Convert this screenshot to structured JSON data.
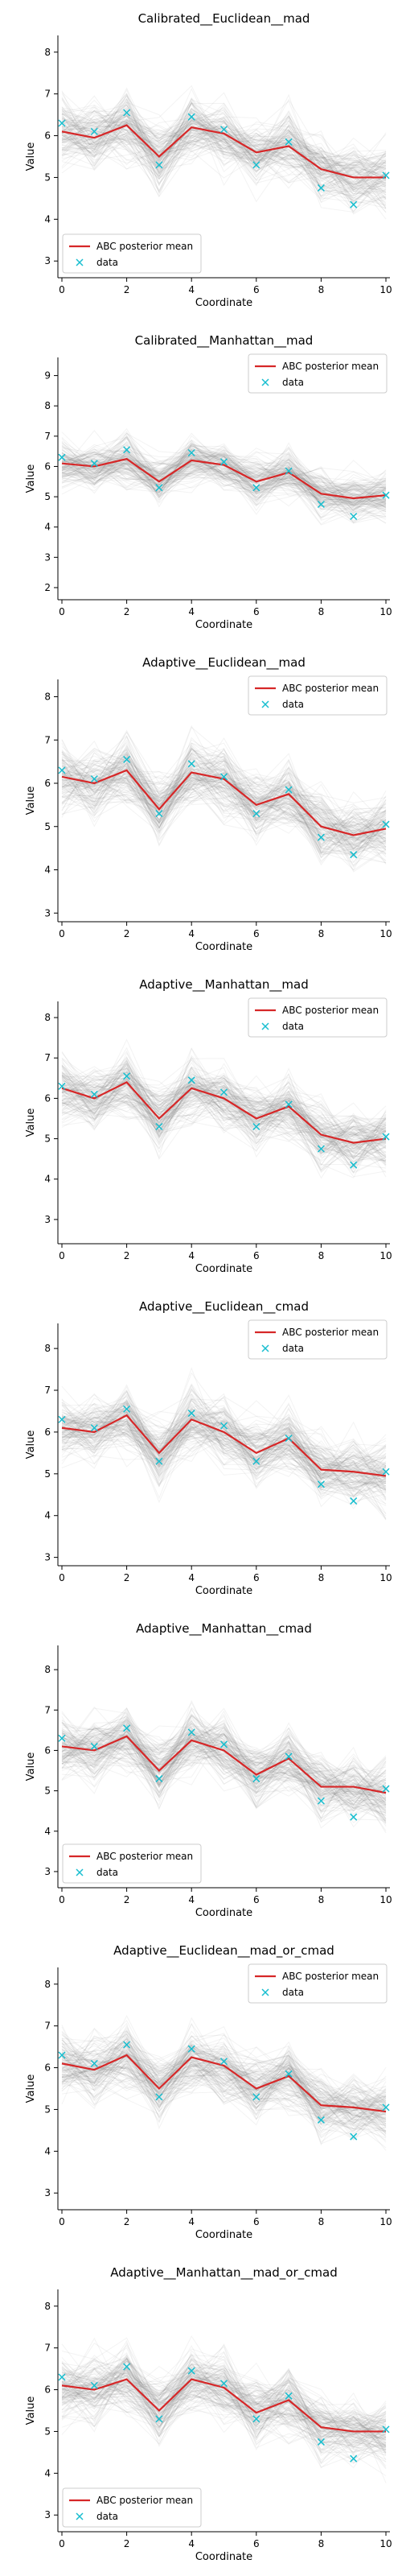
{
  "chart_data": [
    {
      "type": "line",
      "title": "Calibrated__Euclidean__mad",
      "xlabel": "Coordinate",
      "ylabel": "Value",
      "xlim": [
        0,
        10
      ],
      "ylim": [
        2.6,
        8.4
      ],
      "x_ticks": [
        "0",
        "2",
        "4",
        "6",
        "8",
        "10"
      ],
      "y_ticks": [
        "3",
        "4",
        "5",
        "6",
        "7",
        "8"
      ],
      "legend_position": "bottom-left",
      "series": [
        {
          "name": "ABC posterior mean",
          "x": [
            0,
            1,
            2,
            3,
            4,
            5,
            6,
            7,
            8,
            9,
            10
          ],
          "y": [
            6.1,
            5.95,
            6.25,
            5.5,
            6.2,
            6.05,
            5.6,
            5.75,
            5.2,
            5.0,
            5.0
          ],
          "color": "#d62728"
        },
        {
          "name": "data",
          "x": [
            0,
            1,
            2,
            3,
            4,
            5,
            6,
            7,
            8,
            9,
            10
          ],
          "y": [
            6.3,
            6.1,
            6.55,
            5.3,
            6.45,
            6.15,
            5.3,
            5.85,
            4.75,
            4.35,
            5.05
          ],
          "color": "#17becf"
        }
      ]
    },
    {
      "type": "line",
      "title": "Calibrated__Manhattan__mad",
      "xlabel": "Coordinate",
      "ylabel": "Value",
      "xlim": [
        0,
        10
      ],
      "ylim": [
        1.6,
        9.6
      ],
      "x_ticks": [
        "0",
        "2",
        "4",
        "6",
        "8",
        "10"
      ],
      "y_ticks": [
        "2",
        "3",
        "4",
        "5",
        "6",
        "7",
        "8",
        "9"
      ],
      "legend_position": "top-right",
      "series": [
        {
          "name": "ABC posterior mean",
          "x": [
            0,
            1,
            2,
            3,
            4,
            5,
            6,
            7,
            8,
            9,
            10
          ],
          "y": [
            6.1,
            6.0,
            6.25,
            5.5,
            6.2,
            6.05,
            5.5,
            5.8,
            5.1,
            4.95,
            5.05
          ],
          "color": "#d62728"
        },
        {
          "name": "data",
          "x": [
            0,
            1,
            2,
            3,
            4,
            5,
            6,
            7,
            8,
            9,
            10
          ],
          "y": [
            6.3,
            6.1,
            6.55,
            5.3,
            6.45,
            6.15,
            5.3,
            5.85,
            4.75,
            4.35,
            5.05
          ],
          "color": "#17becf"
        }
      ]
    },
    {
      "type": "line",
      "title": "Adaptive__Euclidean__mad",
      "xlabel": "Coordinate",
      "ylabel": "Value",
      "xlim": [
        0,
        10
      ],
      "ylim": [
        2.8,
        8.4
      ],
      "x_ticks": [
        "0",
        "2",
        "4",
        "6",
        "8",
        "10"
      ],
      "y_ticks": [
        "3",
        "4",
        "5",
        "6",
        "7",
        "8"
      ],
      "legend_position": "top-right",
      "series": [
        {
          "name": "ABC posterior mean",
          "x": [
            0,
            1,
            2,
            3,
            4,
            5,
            6,
            7,
            8,
            9,
            10
          ],
          "y": [
            6.15,
            6.0,
            6.3,
            5.4,
            6.25,
            6.1,
            5.5,
            5.75,
            5.0,
            4.8,
            4.95
          ],
          "color": "#d62728"
        },
        {
          "name": "data",
          "x": [
            0,
            1,
            2,
            3,
            4,
            5,
            6,
            7,
            8,
            9,
            10
          ],
          "y": [
            6.3,
            6.1,
            6.55,
            5.3,
            6.45,
            6.15,
            5.3,
            5.85,
            4.75,
            4.35,
            5.05
          ],
          "color": "#17becf"
        }
      ]
    },
    {
      "type": "line",
      "title": "Adaptive__Manhattan__mad",
      "xlabel": "Coordinate",
      "ylabel": "Value",
      "xlim": [
        0,
        10
      ],
      "ylim": [
        2.4,
        8.4
      ],
      "x_ticks": [
        "0",
        "2",
        "4",
        "6",
        "8",
        "10"
      ],
      "y_ticks": [
        "3",
        "4",
        "5",
        "6",
        "7",
        "8"
      ],
      "legend_position": "top-right",
      "series": [
        {
          "name": "ABC posterior mean",
          "x": [
            0,
            1,
            2,
            3,
            4,
            5,
            6,
            7,
            8,
            9,
            10
          ],
          "y": [
            6.25,
            6.0,
            6.4,
            5.5,
            6.25,
            6.0,
            5.5,
            5.8,
            5.1,
            4.9,
            5.0
          ],
          "color": "#d62728"
        },
        {
          "name": "data",
          "x": [
            0,
            1,
            2,
            3,
            4,
            5,
            6,
            7,
            8,
            9,
            10
          ],
          "y": [
            6.3,
            6.1,
            6.55,
            5.3,
            6.45,
            6.15,
            5.3,
            5.85,
            4.75,
            4.35,
            5.05
          ],
          "color": "#17becf"
        }
      ]
    },
    {
      "type": "line",
      "title": "Adaptive__Euclidean__cmad",
      "xlabel": "Coordinate",
      "ylabel": "Value",
      "xlim": [
        0,
        10
      ],
      "ylim": [
        2.8,
        8.6
      ],
      "x_ticks": [
        "0",
        "2",
        "4",
        "6",
        "8",
        "10"
      ],
      "y_ticks": [
        "3",
        "4",
        "5",
        "6",
        "7",
        "8"
      ],
      "legend_position": "top-right",
      "series": [
        {
          "name": "ABC posterior mean",
          "x": [
            0,
            1,
            2,
            3,
            4,
            5,
            6,
            7,
            8,
            9,
            10
          ],
          "y": [
            6.1,
            6.0,
            6.4,
            5.5,
            6.3,
            6.0,
            5.5,
            5.85,
            5.1,
            5.05,
            4.95
          ],
          "color": "#d62728"
        },
        {
          "name": "data",
          "x": [
            0,
            1,
            2,
            3,
            4,
            5,
            6,
            7,
            8,
            9,
            10
          ],
          "y": [
            6.3,
            6.1,
            6.55,
            5.3,
            6.45,
            6.15,
            5.3,
            5.85,
            4.75,
            4.35,
            5.05
          ],
          "color": "#17becf"
        }
      ]
    },
    {
      "type": "line",
      "title": "Adaptive__Manhattan__cmad",
      "xlabel": "Coordinate",
      "ylabel": "Value",
      "xlim": [
        0,
        10
      ],
      "ylim": [
        2.6,
        8.6
      ],
      "x_ticks": [
        "0",
        "2",
        "4",
        "6",
        "8",
        "10"
      ],
      "y_ticks": [
        "3",
        "4",
        "5",
        "6",
        "7",
        "8"
      ],
      "legend_position": "bottom-left",
      "series": [
        {
          "name": "ABC posterior mean",
          "x": [
            0,
            1,
            2,
            3,
            4,
            5,
            6,
            7,
            8,
            9,
            10
          ],
          "y": [
            6.1,
            6.0,
            6.35,
            5.5,
            6.25,
            6.0,
            5.4,
            5.8,
            5.1,
            5.1,
            4.95
          ],
          "color": "#d62728"
        },
        {
          "name": "data",
          "x": [
            0,
            1,
            2,
            3,
            4,
            5,
            6,
            7,
            8,
            9,
            10
          ],
          "y": [
            6.3,
            6.1,
            6.55,
            5.3,
            6.45,
            6.15,
            5.3,
            5.85,
            4.75,
            4.35,
            5.05
          ],
          "color": "#17becf"
        }
      ]
    },
    {
      "type": "line",
      "title": "Adaptive__Euclidean__mad_or_cmad",
      "xlabel": "Coordinate",
      "ylabel": "Value",
      "xlim": [
        0,
        10
      ],
      "ylim": [
        2.6,
        8.4
      ],
      "x_ticks": [
        "0",
        "2",
        "4",
        "6",
        "8",
        "10"
      ],
      "y_ticks": [
        "3",
        "4",
        "5",
        "6",
        "7",
        "8"
      ],
      "legend_position": "top-right",
      "series": [
        {
          "name": "ABC posterior mean",
          "x": [
            0,
            1,
            2,
            3,
            4,
            5,
            6,
            7,
            8,
            9,
            10
          ],
          "y": [
            6.1,
            5.95,
            6.3,
            5.5,
            6.25,
            6.05,
            5.5,
            5.8,
            5.1,
            5.05,
            4.95
          ],
          "color": "#d62728"
        },
        {
          "name": "data",
          "x": [
            0,
            1,
            2,
            3,
            4,
            5,
            6,
            7,
            8,
            9,
            10
          ],
          "y": [
            6.3,
            6.1,
            6.55,
            5.3,
            6.45,
            6.15,
            5.3,
            5.85,
            4.75,
            4.35,
            5.05
          ],
          "color": "#17becf"
        }
      ]
    },
    {
      "type": "line",
      "title": "Adaptive__Manhattan__mad_or_cmad",
      "xlabel": "Coordinate",
      "ylabel": "Value",
      "xlim": [
        0,
        10
      ],
      "ylim": [
        2.6,
        8.4
      ],
      "x_ticks": [
        "0",
        "2",
        "4",
        "6",
        "8",
        "10"
      ],
      "y_ticks": [
        "3",
        "4",
        "5",
        "6",
        "7",
        "8"
      ],
      "legend_position": "bottom-left",
      "series": [
        {
          "name": "ABC posterior mean",
          "x": [
            0,
            1,
            2,
            3,
            4,
            5,
            6,
            7,
            8,
            9,
            10
          ],
          "y": [
            6.1,
            6.0,
            6.25,
            5.5,
            6.25,
            6.05,
            5.45,
            5.75,
            5.1,
            5.0,
            5.0
          ],
          "color": "#d62728"
        },
        {
          "name": "data",
          "x": [
            0,
            1,
            2,
            3,
            4,
            5,
            6,
            7,
            8,
            9,
            10
          ],
          "y": [
            6.3,
            6.1,
            6.55,
            5.3,
            6.45,
            6.15,
            5.3,
            5.85,
            4.75,
            4.35,
            5.05
          ],
          "color": "#17becf"
        }
      ]
    }
  ]
}
